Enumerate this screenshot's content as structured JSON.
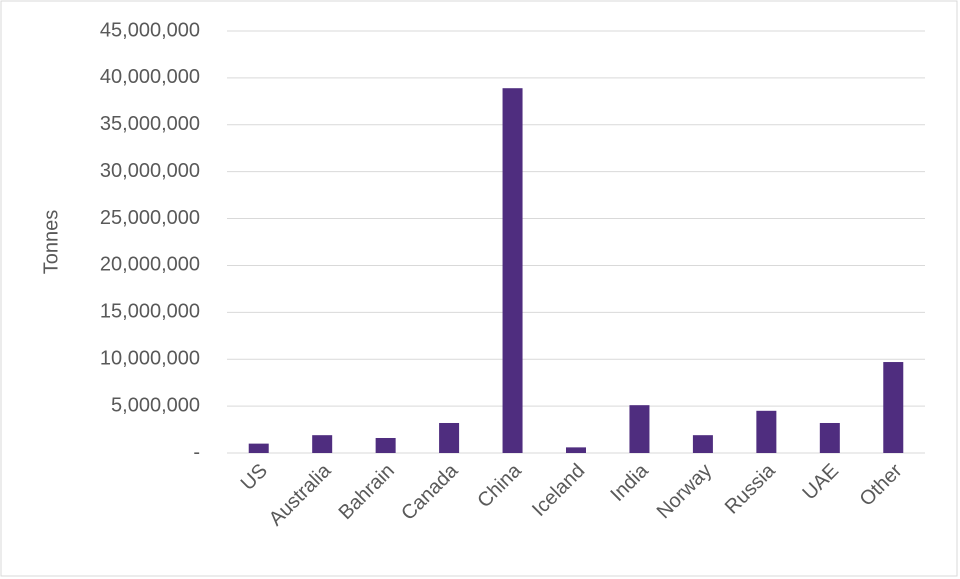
{
  "chart_data": {
    "type": "bar",
    "y_axis_label": "Tonnes",
    "categories": [
      "US",
      "Australia",
      "Bahrain",
      "Canada",
      "China",
      "Iceland",
      "India",
      "Norway",
      "Russia",
      "UAE",
      "Other"
    ],
    "values": [
      1000000,
      1900000,
      1600000,
      3200000,
      38900000,
      600000,
      5100000,
      1900000,
      4500000,
      3200000,
      9700000
    ],
    "color": "#4f2d7f",
    "ylim": [
      0,
      45000000
    ],
    "yticks": [
      {
        "value": 0,
        "label": "-"
      },
      {
        "value": 5000000,
        "label": "5,000,000"
      },
      {
        "value": 10000000,
        "label": "10,000,000"
      },
      {
        "value": 15000000,
        "label": "15,000,000"
      },
      {
        "value": 20000000,
        "label": "20,000,000"
      },
      {
        "value": 25000000,
        "label": "25,000,000"
      },
      {
        "value": 30000000,
        "label": "30,000,000"
      },
      {
        "value": 35000000,
        "label": "35,000,000"
      },
      {
        "value": 40000000,
        "label": "40,000,000"
      },
      {
        "value": 45000000,
        "label": "45,000,000"
      }
    ],
    "grid": true
  }
}
